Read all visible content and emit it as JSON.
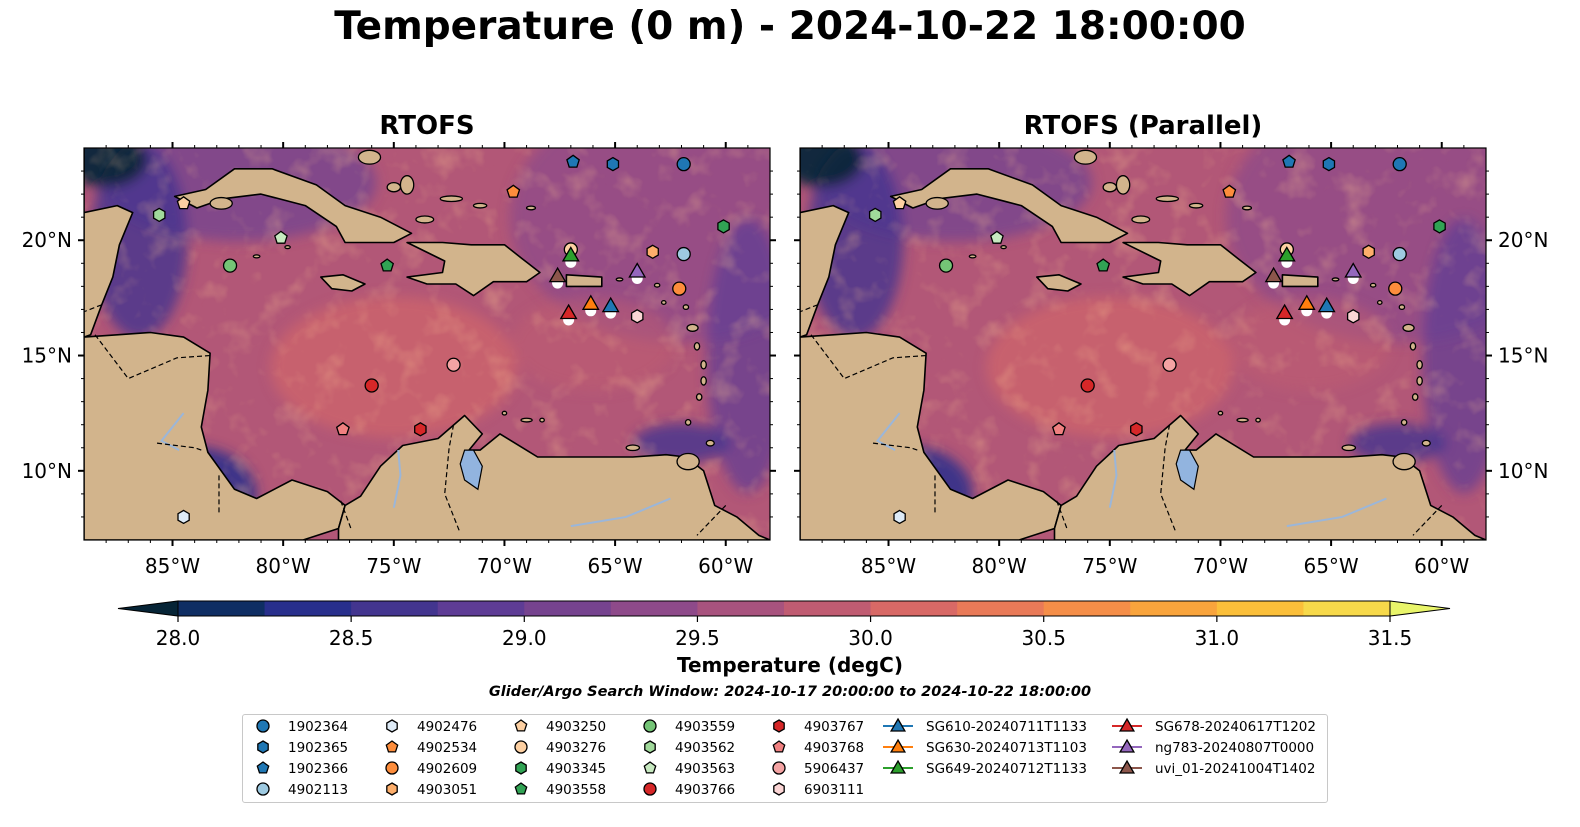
{
  "title": "Temperature (0 m) - 2024-10-22 18:00:00",
  "panels": [
    {
      "title": "RTOFS"
    },
    {
      "title": "RTOFS (Parallel)"
    }
  ],
  "colorbar": {
    "label": "Temperature (degC)",
    "ticks": [
      "28.0",
      "28.5",
      "29.0",
      "29.5",
      "30.0",
      "30.5",
      "31.0",
      "31.5"
    ],
    "colors": [
      "#062436",
      "#0f2e63",
      "#282f8c",
      "#43358f",
      "#5e3c95",
      "#76438f",
      "#8e4a8a",
      "#a8537e",
      "#c05c72",
      "#d86966",
      "#e97a58",
      "#f58e48",
      "#f9a43c",
      "#fbbf3a",
      "#f7d94a",
      "#e9f56a"
    ]
  },
  "search_window": "Glider/Argo Search Window: 2024-10-17 20:00:00 to 2024-10-22 18:00:00",
  "chart_data": {
    "type": "map",
    "projection": "PlateCarree",
    "lon_range": [
      -89,
      -58
    ],
    "lat_range": [
      7,
      24
    ],
    "lon_ticks": [
      "85°W",
      "80°W",
      "75°W",
      "70°W",
      "65°W",
      "60°W"
    ],
    "lat_ticks": [
      "10°N",
      "15°N",
      "20°N"
    ],
    "variable": "Temperature (degC)",
    "colorbar_range": [
      28.0,
      31.5
    ],
    "argo_floats": [
      {
        "id": "1902364",
        "marker": "circle",
        "color": "#1f77b4",
        "lon": -61.9,
        "lat": 23.3
      },
      {
        "id": "1902365",
        "marker": "hexagon",
        "color": "#1f77b4",
        "lon": -65.1,
        "lat": 23.3
      },
      {
        "id": "1902366",
        "marker": "pentagon",
        "color": "#1f77b4",
        "lon": -66.9,
        "lat": 23.4
      },
      {
        "id": "4902113",
        "marker": "circle",
        "color": "#9ecae1",
        "lon": -61.9,
        "lat": 19.4
      },
      {
        "id": "4902476",
        "marker": "hexagon",
        "color": "#deebf7",
        "lon": -84.5,
        "lat": 8.0
      },
      {
        "id": "4902534",
        "marker": "pentagon",
        "color": "#fd8d3c",
        "lon": -69.6,
        "lat": 22.1
      },
      {
        "id": "4902609",
        "marker": "circle",
        "color": "#fd8d3c",
        "lon": -62.1,
        "lat": 17.9
      },
      {
        "id": "4903051",
        "marker": "hexagon",
        "color": "#fdae6b",
        "lon": -63.3,
        "lat": 19.5
      },
      {
        "id": "4903250",
        "marker": "pentagon",
        "color": "#fdd0a2",
        "lon": -84.5,
        "lat": 21.6
      },
      {
        "id": "4903276",
        "marker": "circle",
        "color": "#fdd0a2",
        "lon": -67.0,
        "lat": 19.6
      },
      {
        "id": "4903345",
        "marker": "hexagon",
        "color": "#31a354",
        "lon": -60.1,
        "lat": 20.6
      },
      {
        "id": "4903558",
        "marker": "pentagon",
        "color": "#31a354",
        "lon": -75.3,
        "lat": 18.9
      },
      {
        "id": "4903559",
        "marker": "circle",
        "color": "#74c476",
        "lon": -82.4,
        "lat": 18.9
      },
      {
        "id": "4903562",
        "marker": "hexagon",
        "color": "#a1d99b",
        "lon": -85.6,
        "lat": 21.1
      },
      {
        "id": "4903563",
        "marker": "pentagon",
        "color": "#c7e9c0",
        "lon": -80.1,
        "lat": 20.1
      },
      {
        "id": "4903766",
        "marker": "circle",
        "color": "#d62728",
        "lon": -76.0,
        "lat": 13.7
      },
      {
        "id": "4903767",
        "marker": "hexagon",
        "color": "#d62728",
        "lon": -73.8,
        "lat": 11.8
      },
      {
        "id": "4903768",
        "marker": "pentagon",
        "color": "#f08080",
        "lon": -77.3,
        "lat": 11.8
      },
      {
        "id": "5906437",
        "marker": "circle",
        "color": "#f4a3a3",
        "lon": -72.3,
        "lat": 14.6
      },
      {
        "id": "6903111",
        "marker": "hexagon",
        "color": "#fbd5d5",
        "lon": -64.0,
        "lat": 16.7
      }
    ],
    "gliders": [
      {
        "id": "SG610-20240711T1133",
        "color": "#1f77b4",
        "lon": -65.2,
        "lat": 17.1
      },
      {
        "id": "SG630-20240713T1103",
        "color": "#ff7f0e",
        "lon": -66.1,
        "lat": 17.2
      },
      {
        "id": "SG649-20240712T1133",
        "color": "#2ca02c",
        "lon": -67.0,
        "lat": 19.3
      },
      {
        "id": "SG678-20240617T1202",
        "color": "#d62728",
        "lon": -67.1,
        "lat": 16.8
      },
      {
        "id": "ng783-20240807T0000",
        "color": "#9467bd",
        "lon": -64.0,
        "lat": 18.6
      },
      {
        "id": "uvi_01-20241004T1402",
        "color": "#8c564b",
        "lon": -67.6,
        "lat": 18.4
      }
    ]
  },
  "legend": {
    "columns": [
      [
        "1902364",
        "1902365",
        "1902366",
        "4902113"
      ],
      [
        "4902476",
        "4902534",
        "4902609",
        "4903051"
      ],
      [
        "4903250",
        "4903276",
        "4903345",
        "4903558"
      ],
      [
        "4903559",
        "4903562",
        "4903563",
        "4903766"
      ],
      [
        "4903767",
        "4903768",
        "5906437",
        "6903111"
      ],
      [
        "SG610-20240711T1133",
        "SG630-20240713T1103",
        "SG649-20240712T1133"
      ],
      [
        "SG678-20240617T1202",
        "ng783-20240807T0000",
        "uvi_01-20241004T1402"
      ]
    ]
  }
}
